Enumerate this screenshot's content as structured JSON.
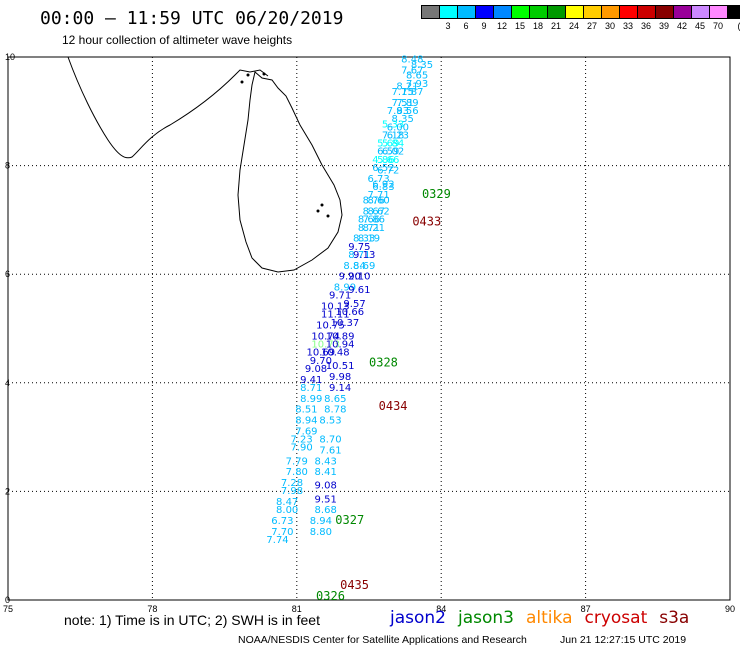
{
  "title": "00:00 – 11:59 UTC 06/20/2019",
  "subtitle": "12 hour collection of altimeter wave heights",
  "colorbar": {
    "unit": "(ft)",
    "colors": [
      "#777777",
      "#00ffff",
      "#00bbff",
      "#0000ff",
      "#0088ff",
      "#00ff00",
      "#00cc00",
      "#009900",
      "#ffff00",
      "#ffcc00",
      "#ff9900",
      "#ff0000",
      "#cc0000",
      "#880000",
      "#990099",
      "#cc88ff",
      "#ff88ff",
      "#000000"
    ],
    "labels": [
      "3",
      "6",
      "9",
      "12",
      "15",
      "18",
      "21",
      "24",
      "27",
      "30",
      "33",
      "36",
      "39",
      "42",
      "45",
      "70"
    ]
  },
  "axes": {
    "x_ticks": [
      "75",
      "78",
      "81",
      "84",
      "87",
      "90"
    ],
    "y_ticks": [
      "0",
      "2",
      "4",
      "6",
      "8",
      "10"
    ],
    "xlim": [
      75,
      90
    ],
    "ylim": [
      0,
      10
    ]
  },
  "passes": [
    {
      "label": "0326",
      "satellite": "jason3",
      "color": "#008800",
      "lon": 81.4,
      "lat": 0.0
    },
    {
      "label": "0327",
      "satellite": "jason3",
      "color": "#008800",
      "lon": 81.8,
      "lat": 1.4
    },
    {
      "label": "0328",
      "satellite": "jason3",
      "color": "#008800",
      "lon": 82.5,
      "lat": 4.3
    },
    {
      "label": "0329",
      "satellite": "jason3",
      "color": "#008800",
      "lon": 83.6,
      "lat": 7.4
    },
    {
      "label": "0433",
      "satellite": "cryosat",
      "color": "#880000",
      "lon": 83.4,
      "lat": 6.9
    },
    {
      "label": "0434",
      "satellite": "cryosat",
      "color": "#880000",
      "lon": 82.7,
      "lat": 3.5
    },
    {
      "label": "0435",
      "satellite": "cryosat",
      "color": "#880000",
      "lon": 81.9,
      "lat": 0.2
    }
  ],
  "readings": [
    {
      "v": "8.48",
      "lon": 83.4,
      "lat": 9.9,
      "c": "#00bbff"
    },
    {
      "v": "8.35",
      "lon": 83.6,
      "lat": 9.8,
      "c": "#00bbff"
    },
    {
      "v": "7.67",
      "lon": 83.4,
      "lat": 9.7,
      "c": "#00bbff"
    },
    {
      "v": "8.65",
      "lon": 83.5,
      "lat": 9.6,
      "c": "#00bbff"
    },
    {
      "v": "8.21",
      "lon": 83.3,
      "lat": 9.4,
      "c": "#00bbff"
    },
    {
      "v": "7.93",
      "lon": 83.5,
      "lat": 9.45,
      "c": "#00bbff"
    },
    {
      "v": "7.15",
      "lon": 83.2,
      "lat": 9.3,
      "c": "#00bbff"
    },
    {
      "v": "7.87",
      "lon": 83.4,
      "lat": 9.3,
      "c": "#00bbff"
    },
    {
      "v": "7.51",
      "lon": 83.2,
      "lat": 9.1,
      "c": "#00bbff"
    },
    {
      "v": "7.89",
      "lon": 83.3,
      "lat": 9.1,
      "c": "#00bbff"
    },
    {
      "v": "7.93",
      "lon": 83.1,
      "lat": 8.95,
      "c": "#00bbff"
    },
    {
      "v": "8.56",
      "lon": 83.3,
      "lat": 8.95,
      "c": "#00bbff"
    },
    {
      "v": "8.35",
      "lon": 83.2,
      "lat": 8.8,
      "c": "#00bbff"
    },
    {
      "v": "5.33",
      "lon": 83.0,
      "lat": 8.7,
      "c": "#00ffff"
    },
    {
      "v": "6.00",
      "lon": 83.1,
      "lat": 8.65,
      "c": "#00bbff"
    },
    {
      "v": "7.18",
      "lon": 83.0,
      "lat": 8.5,
      "c": "#00bbff"
    },
    {
      "v": "6.23",
      "lon": 83.1,
      "lat": 8.5,
      "c": "#00bbff"
    },
    {
      "v": "5.69",
      "lon": 82.9,
      "lat": 8.35,
      "c": "#00ffff"
    },
    {
      "v": "5.84",
      "lon": 83.0,
      "lat": 8.35,
      "c": "#00ffff"
    },
    {
      "v": "6.59",
      "lon": 82.9,
      "lat": 8.2,
      "c": "#00bbff"
    },
    {
      "v": "6.02",
      "lon": 83.0,
      "lat": 8.2,
      "c": "#00bbff"
    },
    {
      "v": "4.86",
      "lon": 82.8,
      "lat": 8.05,
      "c": "#00ffff"
    },
    {
      "v": "5.66",
      "lon": 82.9,
      "lat": 8.05,
      "c": "#00ffff"
    },
    {
      "v": "6.52",
      "lon": 82.8,
      "lat": 7.9,
      "c": "#00bbff"
    },
    {
      "v": "6.72",
      "lon": 82.9,
      "lat": 7.85,
      "c": "#00bbff"
    },
    {
      "v": "6.73",
      "lon": 82.7,
      "lat": 7.7,
      "c": "#00bbff"
    },
    {
      "v": "6.92",
      "lon": 82.8,
      "lat": 7.6,
      "c": "#00bbff"
    },
    {
      "v": "6.83",
      "lon": 82.8,
      "lat": 7.55,
      "c": "#00bbff"
    },
    {
      "v": "7.71",
      "lon": 82.7,
      "lat": 7.4,
      "c": "#00bbff"
    },
    {
      "v": "8.76",
      "lon": 82.6,
      "lat": 7.3,
      "c": "#00bbff"
    },
    {
      "v": "8.60",
      "lon": 82.7,
      "lat": 7.3,
      "c": "#00bbff"
    },
    {
      "v": "8.67",
      "lon": 82.6,
      "lat": 7.1,
      "c": "#00bbff"
    },
    {
      "v": "8.62",
      "lon": 82.7,
      "lat": 7.1,
      "c": "#00bbff"
    },
    {
      "v": "8.66",
      "lon": 82.5,
      "lat": 6.95,
      "c": "#00bbff"
    },
    {
      "v": "7.86",
      "lon": 82.6,
      "lat": 6.95,
      "c": "#00bbff"
    },
    {
      "v": "8.71",
      "lon": 82.5,
      "lat": 6.8,
      "c": "#00bbff"
    },
    {
      "v": "8.21",
      "lon": 82.6,
      "lat": 6.8,
      "c": "#00bbff"
    },
    {
      "v": "8.33",
      "lon": 82.4,
      "lat": 6.6,
      "c": "#00bbff"
    },
    {
      "v": "8.19",
      "lon": 82.5,
      "lat": 6.6,
      "c": "#00bbff"
    },
    {
      "v": "9.75",
      "lon": 82.3,
      "lat": 6.45,
      "c": "#0000cc"
    },
    {
      "v": "8.71",
      "lon": 82.3,
      "lat": 6.3,
      "c": "#00bbff"
    },
    {
      "v": "9.13",
      "lon": 82.4,
      "lat": 6.3,
      "c": "#0000cc"
    },
    {
      "v": "8.84",
      "lon": 82.2,
      "lat": 6.1,
      "c": "#00bbff"
    },
    {
      "v": "8.69",
      "lon": 82.4,
      "lat": 6.1,
      "c": "#00bbff"
    },
    {
      "v": "9.20",
      "lon": 82.1,
      "lat": 5.9,
      "c": "#0000cc"
    },
    {
      "v": "9.10",
      "lon": 82.3,
      "lat": 5.9,
      "c": "#0000cc"
    },
    {
      "v": "8.99",
      "lon": 82.0,
      "lat": 5.7,
      "c": "#00bbff"
    },
    {
      "v": "9.61",
      "lon": 82.3,
      "lat": 5.65,
      "c": "#0000cc"
    },
    {
      "v": "9.71",
      "lon": 81.9,
      "lat": 5.55,
      "c": "#0000cc"
    },
    {
      "v": "10.13",
      "lon": 81.8,
      "lat": 5.35,
      "c": "#0000cc"
    },
    {
      "v": "9.57",
      "lon": 82.2,
      "lat": 5.4,
      "c": "#0000cc"
    },
    {
      "v": "11.11",
      "lon": 81.8,
      "lat": 5.2,
      "c": "#0000cc"
    },
    {
      "v": "10.66",
      "lon": 82.1,
      "lat": 5.25,
      "c": "#0000cc"
    },
    {
      "v": "10.75",
      "lon": 81.7,
      "lat": 5.0,
      "c": "#0000cc"
    },
    {
      "v": "10.37",
      "lon": 82.0,
      "lat": 5.05,
      "c": "#0000cc"
    },
    {
      "v": "10.74",
      "lon": 81.6,
      "lat": 4.8,
      "c": "#0000cc"
    },
    {
      "v": "10.89",
      "lon": 81.9,
      "lat": 4.8,
      "c": "#0000cc"
    },
    {
      "v": "10.73",
      "lon": 81.6,
      "lat": 4.65,
      "c": "#88ff88"
    },
    {
      "v": "10.94",
      "lon": 81.9,
      "lat": 4.65,
      "c": "#0000cc"
    },
    {
      "v": "10.69",
      "lon": 81.5,
      "lat": 4.5,
      "c": "#0000cc"
    },
    {
      "v": "10.48",
      "lon": 81.8,
      "lat": 4.5,
      "c": "#0000cc"
    },
    {
      "v": "9.70",
      "lon": 81.5,
      "lat": 4.35,
      "c": "#0000cc"
    },
    {
      "v": "10.51",
      "lon": 81.9,
      "lat": 4.25,
      "c": "#0000cc"
    },
    {
      "v": "9.08",
      "lon": 81.4,
      "lat": 4.2,
      "c": "#0000cc"
    },
    {
      "v": "9.98",
      "lon": 81.9,
      "lat": 4.05,
      "c": "#0000cc"
    },
    {
      "v": "9.41",
      "lon": 81.3,
      "lat": 4.0,
      "c": "#0000cc"
    },
    {
      "v": "8.71",
      "lon": 81.3,
      "lat": 3.85,
      "c": "#00bbff"
    },
    {
      "v": "9.14",
      "lon": 81.9,
      "lat": 3.85,
      "c": "#0000cc"
    },
    {
      "v": "8.99",
      "lon": 81.3,
      "lat": 3.65,
      "c": "#00bbff"
    },
    {
      "v": "8.65",
      "lon": 81.8,
      "lat": 3.65,
      "c": "#00bbff"
    },
    {
      "v": "8.51",
      "lon": 81.2,
      "lat": 3.45,
      "c": "#00bbff"
    },
    {
      "v": "8.78",
      "lon": 81.8,
      "lat": 3.45,
      "c": "#00bbff"
    },
    {
      "v": "8.94",
      "lon": 81.2,
      "lat": 3.25,
      "c": "#00bbff"
    },
    {
      "v": "8.53",
      "lon": 81.7,
      "lat": 3.25,
      "c": "#00bbff"
    },
    {
      "v": "7.69",
      "lon": 81.2,
      "lat": 3.05,
      "c": "#00bbff"
    },
    {
      "v": "7.23",
      "lon": 81.1,
      "lat": 2.9,
      "c": "#00bbff"
    },
    {
      "v": "8.70",
      "lon": 81.7,
      "lat": 2.9,
      "c": "#00bbff"
    },
    {
      "v": "7.90",
      "lon": 81.1,
      "lat": 2.75,
      "c": "#00bbff"
    },
    {
      "v": "7.61",
      "lon": 81.7,
      "lat": 2.7,
      "c": "#00bbff"
    },
    {
      "v": "7.79",
      "lon": 81.0,
      "lat": 2.5,
      "c": "#00bbff"
    },
    {
      "v": "8.43",
      "lon": 81.6,
      "lat": 2.5,
      "c": "#00bbff"
    },
    {
      "v": "7.80",
      "lon": 81.0,
      "lat": 2.3,
      "c": "#00bbff"
    },
    {
      "v": "8.41",
      "lon": 81.6,
      "lat": 2.3,
      "c": "#00bbff"
    },
    {
      "v": "7.28",
      "lon": 80.9,
      "lat": 2.1,
      "c": "#00bbff"
    },
    {
      "v": "9.08",
      "lon": 81.6,
      "lat": 2.05,
      "c": "#0000cc"
    },
    {
      "v": "7.98",
      "lon": 80.9,
      "lat": 1.95,
      "c": "#00bbff"
    },
    {
      "v": "9.51",
      "lon": 81.6,
      "lat": 1.8,
      "c": "#0000cc"
    },
    {
      "v": "8.47",
      "lon": 80.8,
      "lat": 1.75,
      "c": "#00bbff"
    },
    {
      "v": "8.00",
      "lon": 80.8,
      "lat": 1.6,
      "c": "#00bbff"
    },
    {
      "v": "8.68",
      "lon": 81.6,
      "lat": 1.6,
      "c": "#00bbff"
    },
    {
      "v": "6.73",
      "lon": 80.7,
      "lat": 1.4,
      "c": "#00bbff"
    },
    {
      "v": "8.94",
      "lon": 81.5,
      "lat": 1.4,
      "c": "#00bbff"
    },
    {
      "v": "7.70",
      "lon": 80.7,
      "lat": 1.2,
      "c": "#00bbff"
    },
    {
      "v": "8.80",
      "lon": 81.5,
      "lat": 1.2,
      "c": "#00bbff"
    },
    {
      "v": "7.74",
      "lon": 80.6,
      "lat": 1.05,
      "c": "#00bbff"
    }
  ],
  "note": "note: 1) Time is in UTC; 2) SWH is in feet",
  "legend": [
    {
      "name": "jason2",
      "color": "#0000cc"
    },
    {
      "name": "jason3",
      "color": "#008800"
    },
    {
      "name": "altika",
      "color": "#ff8800"
    },
    {
      "name": "cryosat",
      "color": "#cc0000"
    },
    {
      "name": "s3a",
      "color": "#880000"
    }
  ],
  "credit": "NOAA/NESDIS Center for Satellite Applications and Research",
  "timestamp": "Jun 21 12:27:15 UTC 2019"
}
